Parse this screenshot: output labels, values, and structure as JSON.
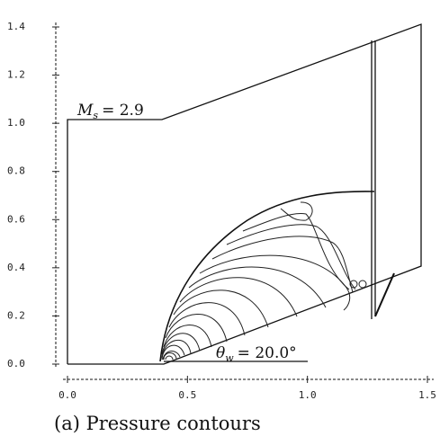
{
  "chart_data": {
    "type": "contour",
    "caption": "(a) Pressure contours",
    "annotations": [
      {
        "symbol": "M",
        "subscript": "s",
        "text": "= 2.9"
      },
      {
        "symbol": "θ",
        "subscript": "w",
        "text": "= 20.0°"
      }
    ],
    "xlim": [
      0,
      1.5
    ],
    "ylim": [
      0,
      1.4
    ],
    "xticks": [
      {
        "value": 0,
        "label": "0.0"
      },
      0.5,
      {
        "value": 1,
        "label": "1.0"
      },
      1.5
    ],
    "yticks": [
      {
        "value": 0,
        "label": "0.0"
      },
      0.2,
      0.4,
      0.6,
      0.8,
      {
        "value": 1,
        "label": "1.0"
      },
      1.2,
      1.4
    ]
  }
}
